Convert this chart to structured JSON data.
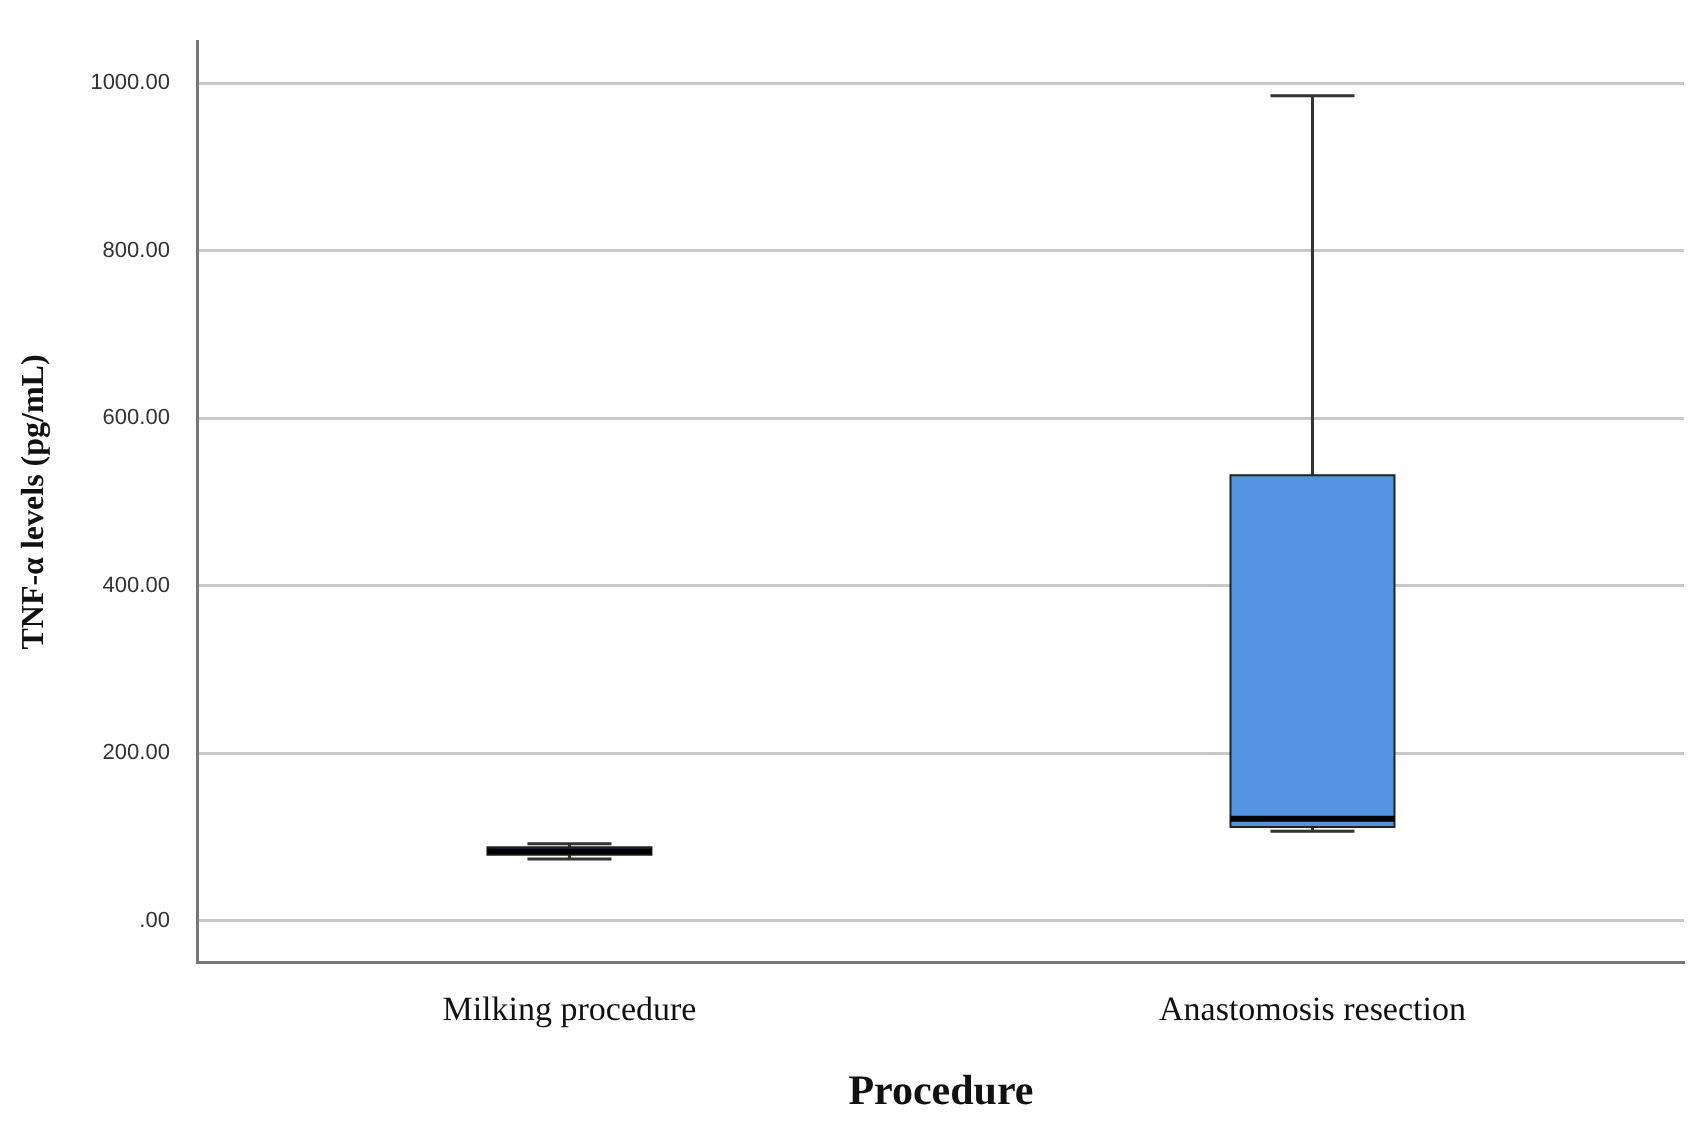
{
  "chart_data": {
    "type": "box",
    "xlabel": "Procedure",
    "ylabel": "TNF-α levels (pg/mL)",
    "categories": [
      "Milking procedure",
      "Anastomosis resection"
    ],
    "boxes": [
      {
        "low": 74,
        "q1": 79,
        "median": 83,
        "q3": 88,
        "high": 92
      },
      {
        "low": 107,
        "q1": 112,
        "median": 122,
        "q3": 532,
        "high": 985
      }
    ],
    "colors": [
      "#5294e2",
      "#5294e2"
    ],
    "ylim": [
      -50,
      1050
    ],
    "yticks": [
      {
        "value": 0,
        "label": ".00"
      },
      {
        "value": 200,
        "label": "200.00"
      },
      {
        "value": 400,
        "label": "400.00"
      },
      {
        "value": 600,
        "label": "600.00"
      },
      {
        "value": 800,
        "label": "800.00"
      },
      {
        "value": 1000,
        "label": "1000.00"
      }
    ],
    "grid": "y"
  }
}
